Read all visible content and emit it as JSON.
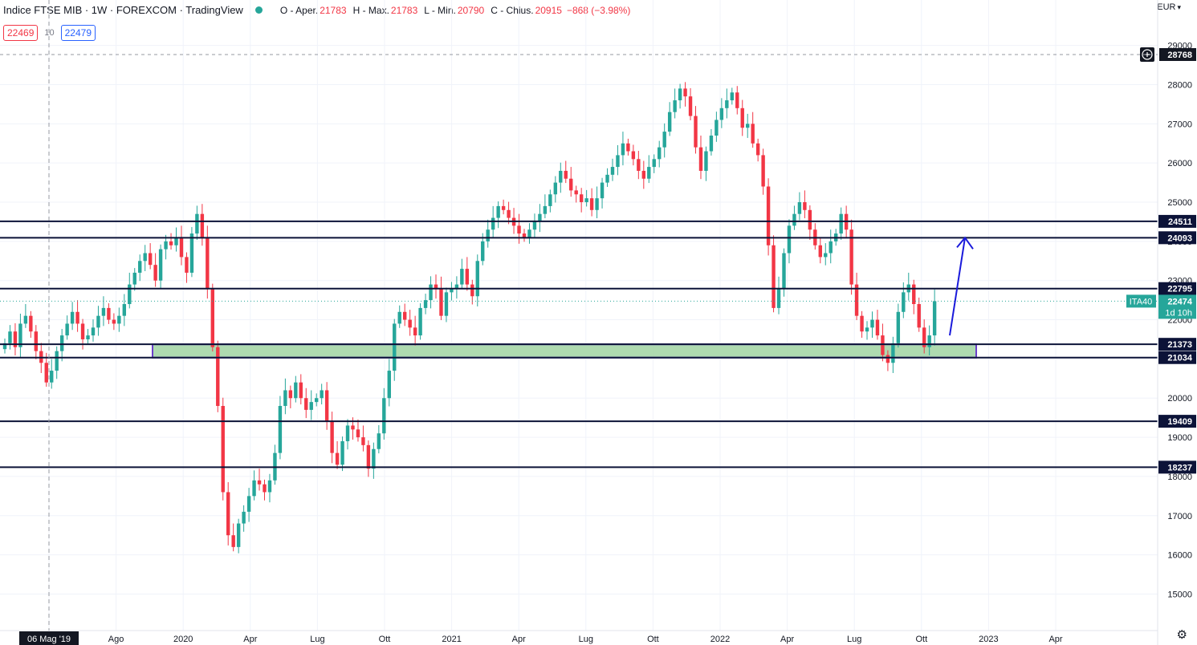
{
  "header": {
    "title": "Indice FTSE MIB · 1W · FOREXCOM · TradingView",
    "ohlc": [
      {
        "key": "O - Aper.",
        "value": "21783"
      },
      {
        "key": "H - Max.",
        "value": "21783"
      },
      {
        "key": "L - Min.",
        "value": "20790"
      },
      {
        "key": "C - Chius.",
        "value": "20915"
      }
    ],
    "change": "−868 (−3.98%)"
  },
  "trade": {
    "sell": "22469",
    "spread": "10",
    "buy": "22479"
  },
  "currency": "EUR",
  "colors": {
    "up": "#26a69a",
    "down": "#f23645",
    "levelLine": "#0c1338",
    "zone": "#a5d6a7",
    "zoneBorder": "#6a3fc9",
    "arrow": "#1a1adb"
  },
  "chart_data": {
    "type": "candlestick",
    "title": "Indice FTSE MIB · 1W · FOREXCOM",
    "ylim": [
      14600,
      29300
    ],
    "y_ticks": [
      15000,
      16000,
      17000,
      18000,
      19000,
      20000,
      21000,
      22000,
      23000,
      24000,
      25000,
      26000,
      27000,
      28000,
      29000
    ],
    "x_ticks": [
      "06 Mag '19",
      "Ago",
      "2020",
      "Apr",
      "Lug",
      "Ott",
      "2021",
      "Apr",
      "Lug",
      "Ott",
      "2022",
      "Apr",
      "Lug",
      "Ott",
      "2023",
      "Apr"
    ],
    "series_closes": [
      21400,
      21700,
      21300,
      21900,
      22100,
      21700,
      21200,
      20900,
      20400,
      20700,
      21200,
      21600,
      21900,
      22200,
      21900,
      21500,
      21600,
      21800,
      22100,
      22300,
      22000,
      21900,
      22100,
      22400,
      22900,
      23200,
      23500,
      23700,
      23400,
      23000,
      23800,
      24000,
      23900,
      24100,
      23600,
      23200,
      24200,
      24700,
      24100,
      22800,
      21300,
      19800,
      17600,
      16500,
      16200,
      16800,
      17100,
      17500,
      17900,
      17800,
      17600,
      17900,
      18600,
      19800,
      20200,
      20000,
      20400,
      20000,
      19700,
      19900,
      20000,
      20200,
      19400,
      18600,
      18300,
      18900,
      19300,
      19200,
      19000,
      18800,
      18200,
      18700,
      19100,
      20000,
      20700,
      21900,
      22200,
      22000,
      21800,
      21600,
      22300,
      22500,
      22900,
      22800,
      22100,
      22700,
      22800,
      22900,
      23300,
      22900,
      22600,
      23500,
      24000,
      24300,
      24600,
      24900,
      24800,
      24600,
      24400,
      24200,
      24100,
      24300,
      24500,
      24700,
      24900,
      25200,
      25500,
      25800,
      25600,
      25300,
      25200,
      25000,
      25100,
      24800,
      25100,
      25500,
      25700,
      25900,
      26200,
      26500,
      26300,
      26100,
      25800,
      25600,
      25900,
      26100,
      26400,
      26800,
      27300,
      27600,
      27900,
      27700,
      27200,
      26400,
      25800,
      26300,
      26700,
      27100,
      27400,
      27600,
      27800,
      27400,
      26900,
      27000,
      26500,
      26200,
      25400,
      23900,
      22300,
      22800,
      23700,
      24400,
      24700,
      25000,
      24800,
      24300,
      23900,
      23600,
      23700,
      24000,
      24200,
      24700,
      24300,
      22900,
      22100,
      21700,
      21800,
      22000,
      21600,
      21100,
      20900,
      21400,
      22200,
      22700,
      22900,
      22400,
      21800,
      21300,
      21600,
      22474
    ],
    "horizontal_levels": [
      24511,
      24093,
      22795,
      21373,
      21034,
      19409,
      18237
    ],
    "top_marker": 28768,
    "support_zone": [
      21034,
      21373
    ],
    "last_price": {
      "symbol": "ITA40",
      "value": 22474,
      "countdown": "1d 10h"
    },
    "crosshair_date": "06 Mag '19",
    "projection": {
      "from": 21600,
      "to": 24093
    }
  }
}
